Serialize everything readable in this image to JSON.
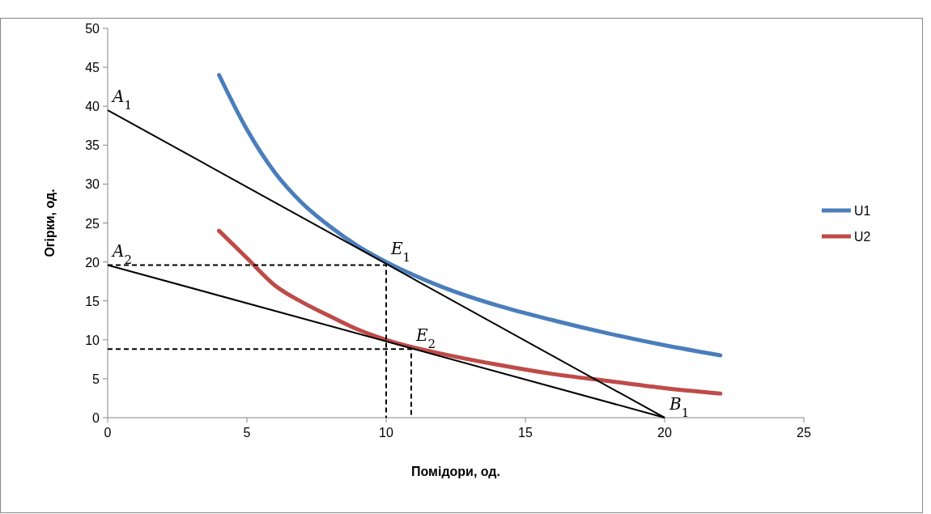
{
  "chart_data": {
    "type": "line",
    "xlabel": "Помідори, од.",
    "ylabel": "Огірки, од.",
    "xlim": [
      0,
      25
    ],
    "xticks": [
      0,
      5,
      10,
      15,
      20,
      25
    ],
    "ylim": [
      0,
      50
    ],
    "yticks": [
      0,
      5,
      10,
      15,
      20,
      25,
      30,
      35,
      40,
      45,
      50
    ],
    "grid": false,
    "legend": "right",
    "marker": "none",
    "series": [
      {
        "name": "U1",
        "color": "#4a7ebb",
        "x": [
          4,
          5,
          6,
          7,
          8,
          9,
          10,
          11,
          12,
          14,
          16,
          18,
          20,
          22
        ],
        "values": [
          44,
          37,
          31.5,
          27.5,
          24.5,
          22,
          20,
          18.3,
          16.8,
          14.4,
          12.5,
          10.8,
          9.3,
          8
        ]
      },
      {
        "name": "U2",
        "color": "#be4b48",
        "x": [
          4,
          5,
          6,
          7,
          8,
          9,
          10,
          11,
          12,
          14,
          16,
          18,
          20,
          22
        ],
        "values": [
          24,
          20.5,
          17,
          14.8,
          13,
          11.3,
          10,
          9,
          8.2,
          6.8,
          5.6,
          4.7,
          3.8,
          3.1
        ]
      },
      {
        "color": "#000000",
        "x": [
          0,
          20
        ],
        "values": [
          39.5,
          0
        ],
        "line_style": "solid"
      },
      {
        "color": "#000000",
        "x": [
          0,
          20
        ],
        "values": [
          19.6,
          0
        ],
        "line_style": "solid"
      },
      {
        "color": "#000000",
        "x": [
          0,
          10,
          10
        ],
        "values": [
          19.6,
          19.6,
          0
        ],
        "line_style": "dashed"
      },
      {
        "color": "#000000",
        "x": [
          0,
          10.9,
          10.9
        ],
        "values": [
          8.8,
          8.8,
          0
        ],
        "line_style": "dashed"
      }
    ],
    "annotations": [
      {
        "text": "A$_{1}$",
        "x": 0,
        "y": 39.5
      },
      {
        "text": "A$_{2}$",
        "x": 0,
        "y": 19.6
      },
      {
        "text": "E$_{1}$",
        "x": 10,
        "y": 20
      },
      {
        "text": "E$_{2}$",
        "x": 10.9,
        "y": 8.8
      },
      {
        "text": "B$_{1}$",
        "x": 20,
        "y": 0
      }
    ]
  }
}
